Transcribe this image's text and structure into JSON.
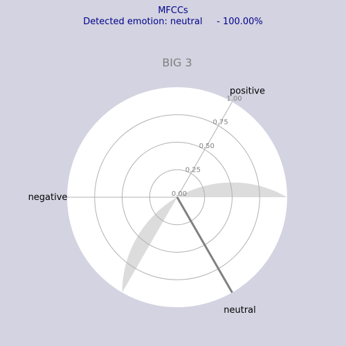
{
  "header": {
    "title": "MFCCs",
    "subtitle": "Detected emotion: neutral     - 100.00%"
  },
  "chart_data": {
    "type": "radar",
    "title": "BIG 3",
    "axes": [
      "positive",
      "negative",
      "neutral"
    ],
    "values": [
      0,
      0,
      1.0
    ],
    "rlim": [
      0,
      1.0
    ],
    "r_ticks": [
      "0.00",
      "0.25",
      "0.50",
      "0.75",
      "1.00"
    ],
    "grid": true,
    "colors": {
      "background": "#d3d3e1",
      "plot_face": "#ffffff",
      "highlight_fill": "#dcdcdc",
      "grid": "#b0b0b0",
      "value_line": "#808080",
      "title": "#808080",
      "tick_label": "#808080",
      "axis_label": "#000000",
      "header_text": "#00008b"
    }
  }
}
